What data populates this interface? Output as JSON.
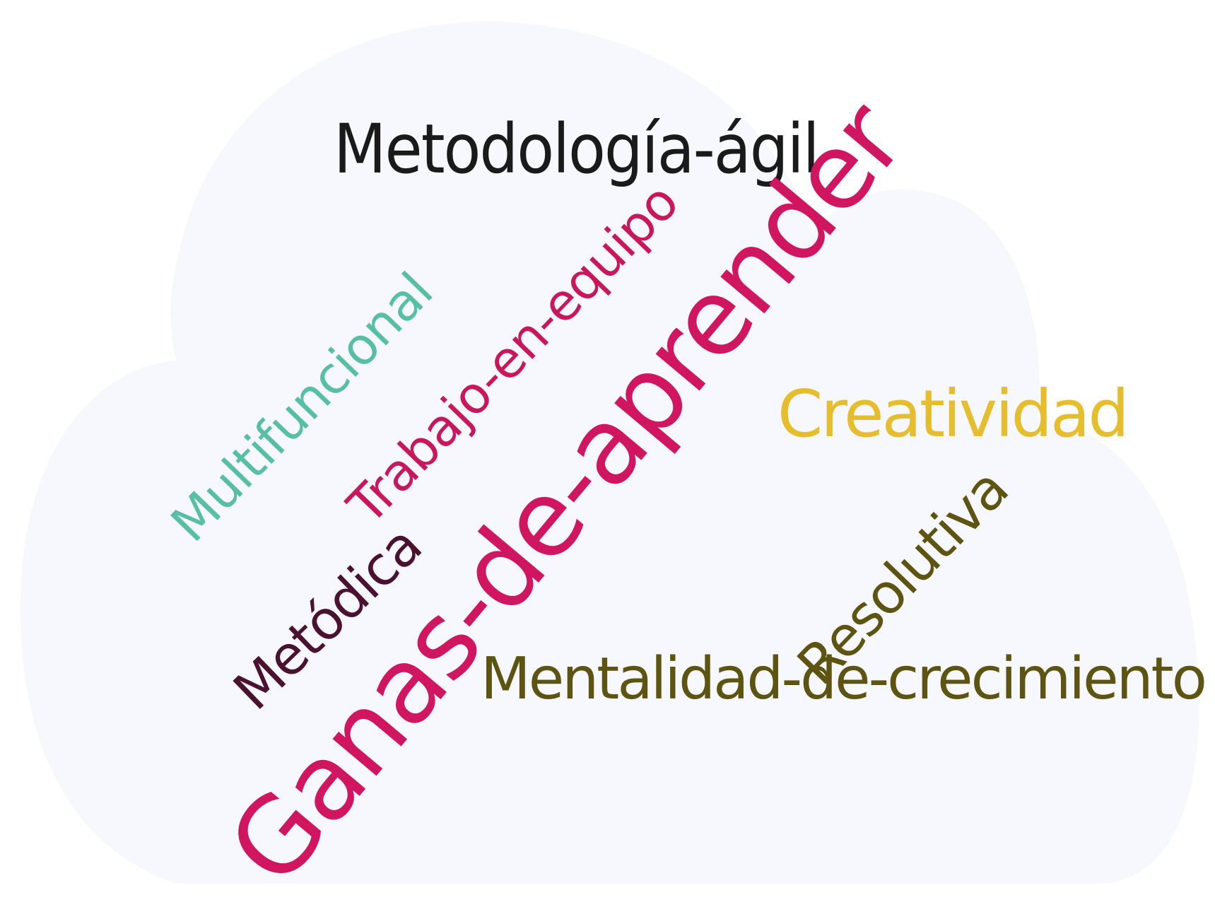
{
  "background": {
    "page_color": "#ffffff",
    "cloud_color": "#f7f8fd"
  },
  "words": {
    "metodologia": {
      "text": "Metodología-ágil",
      "color": "#1a1a1a"
    },
    "trabajo": {
      "text": "Trabajo-en-equipo",
      "color": "#c8175d"
    },
    "multifuncional": {
      "text": "Multifuncional",
      "color": "#56bfa6"
    },
    "ganas": {
      "text": "Ganas-de-aprender",
      "color": "#d01660"
    },
    "creatividad": {
      "text": "Creatividad",
      "color": "#e6bd2d"
    },
    "resolutiva": {
      "text": "Resolutiva",
      "color": "#5c5410"
    },
    "metodica": {
      "text": "Metódica",
      "color": "#4a1230"
    },
    "mentalidad": {
      "text": "Mentalidad-de-crecimiento",
      "color": "#5c5410"
    }
  }
}
